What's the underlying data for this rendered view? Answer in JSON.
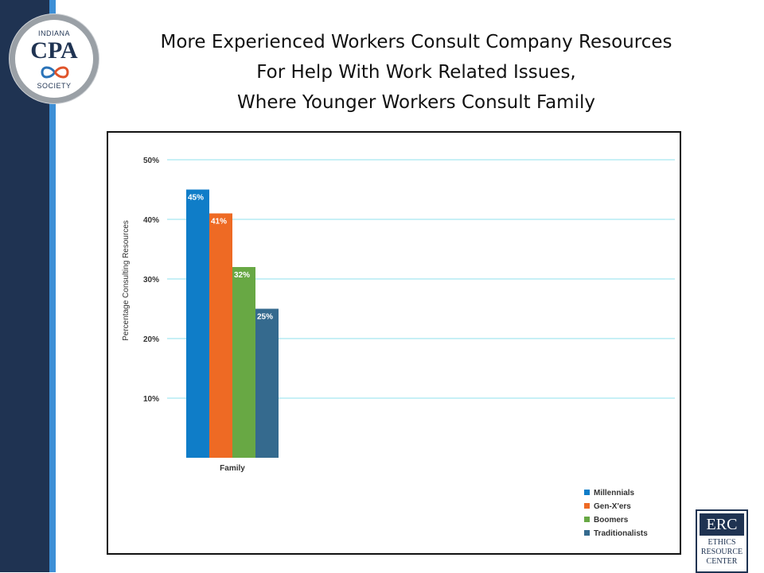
{
  "slide": {
    "title_lines": [
      "More Experienced Workers Consult Company Resources",
      "For Help With Work Related Issues,",
      "Where Younger Workers Consult Family"
    ]
  },
  "logo": {
    "top": "INDIANA",
    "main": "CPA",
    "bottom": "SOCIETY"
  },
  "erc_logo": {
    "top": "ERC",
    "lines": [
      "ETHICS",
      "RESOURCE",
      "CENTER"
    ]
  },
  "colors": {
    "sidebar_dark": "#1f3352",
    "sidebar_accent": "#3d8fd6",
    "gridline": "#8fe0ec"
  },
  "chart_data": {
    "type": "bar",
    "categories": [
      "Family"
    ],
    "series": [
      {
        "name": "Millennials",
        "values": [
          45
        ],
        "label": "45%",
        "color": "#0f7dc8"
      },
      {
        "name": "Gen-X'ers",
        "values": [
          41
        ],
        "label": "41%",
        "color": "#ee6a24"
      },
      {
        "name": "Boomers",
        "values": [
          32
        ],
        "label": "32%",
        "color": "#68a844"
      },
      {
        "name": "Traditionalists",
        "values": [
          25
        ],
        "label": "25%",
        "color": "#356a8e"
      }
    ],
    "ylabel": "Percentage Consulting Resources",
    "xlabel": "",
    "ylim": [
      0,
      50
    ],
    "yticks": [
      10,
      20,
      30,
      40,
      50
    ],
    "ytick_labels": [
      "10%",
      "20%",
      "30%",
      "40%",
      "50%"
    ],
    "grid": true,
    "legend_position": "bottom-right"
  }
}
